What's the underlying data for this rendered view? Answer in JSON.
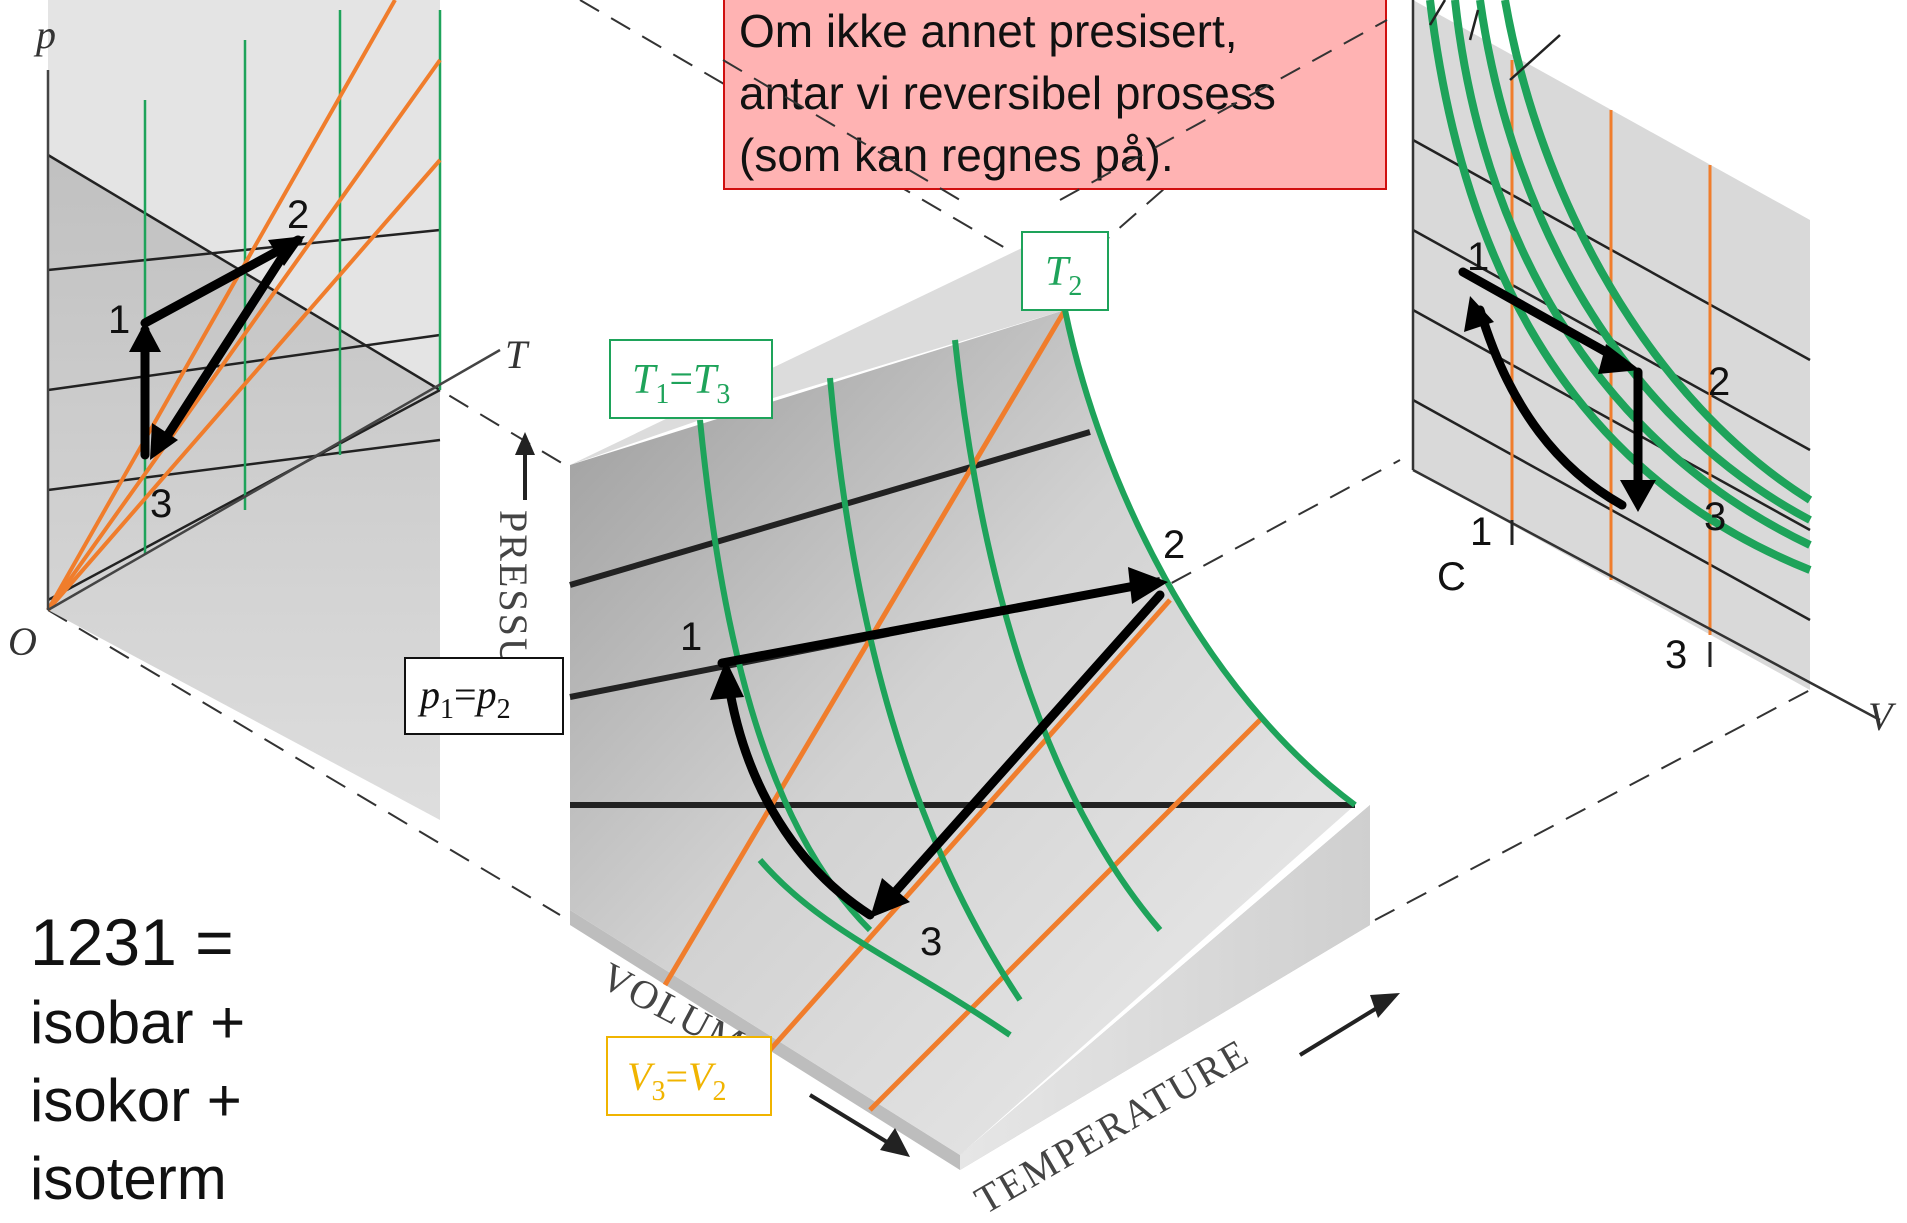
{
  "note": {
    "line1": "Om ikke annet presisert,",
    "line2": "antar vi reversibel prosess",
    "line3": "(som kan regnes på)."
  },
  "summary": {
    "line1": "1231 =",
    "line2": "isobar +",
    "line3": "isokor +",
    "line4": "isoterm"
  },
  "axes": {
    "p": "p",
    "T": "T",
    "O": "O",
    "V": "V",
    "pressure": "PRESSURE",
    "volume": "VOLUME",
    "temperature": "TEMPERATURE"
  },
  "state_labels": {
    "s1": "1",
    "s2": "2",
    "s3": "3",
    "c": "C",
    "c1": "1",
    "c3": "3"
  },
  "tags": {
    "t2": "T2",
    "t1t3": "T1=T3",
    "p1p2": "p1=p2",
    "v3v2": "V3=V2"
  },
  "colors": {
    "isotherm": "#1ea35a",
    "isochore": "#f07d2c",
    "isobar": "#222222",
    "surface": "#c8c8c8",
    "note_bg": "#ffb3b3",
    "note_border": "#d01010",
    "tag_v": "#f0b400"
  }
}
